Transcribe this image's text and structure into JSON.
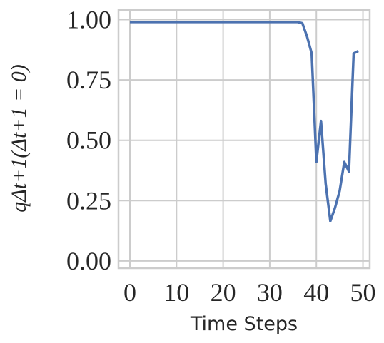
{
  "chart_data": {
    "type": "line",
    "xlabel": "Time Steps",
    "ylabel": "qΔt+1(Δt+1 = 0)",
    "x": [
      0,
      1,
      2,
      3,
      4,
      5,
      6,
      7,
      8,
      9,
      10,
      11,
      12,
      13,
      14,
      15,
      16,
      17,
      18,
      19,
      20,
      21,
      22,
      23,
      24,
      25,
      26,
      27,
      28,
      29,
      30,
      31,
      32,
      33,
      34,
      35,
      36,
      37,
      38,
      39,
      40,
      41,
      42,
      43,
      44,
      45,
      46,
      47,
      48,
      49
    ],
    "series": [
      {
        "color": "#4c72b0",
        "values": [
          0.99,
          0.99,
          0.99,
          0.99,
          0.99,
          0.99,
          0.99,
          0.99,
          0.99,
          0.99,
          0.99,
          0.99,
          0.99,
          0.99,
          0.99,
          0.99,
          0.99,
          0.99,
          0.99,
          0.99,
          0.99,
          0.99,
          0.99,
          0.99,
          0.99,
          0.99,
          0.99,
          0.99,
          0.99,
          0.99,
          0.99,
          0.99,
          0.99,
          0.99,
          0.99,
          0.99,
          0.99,
          0.985,
          0.93,
          0.86,
          0.41,
          0.58,
          0.32,
          0.165,
          0.22,
          0.29,
          0.41,
          0.37,
          0.86,
          0.87
        ]
      }
    ],
    "xlim": [
      -2.45,
      51.45
    ],
    "ylim": [
      -0.03,
      1.04
    ],
    "xticks": [
      0,
      10,
      20,
      30,
      40,
      50
    ],
    "yticks": [
      {
        "value": 0,
        "label": "0.00"
      },
      {
        "value": 0.25,
        "label": "0.25"
      },
      {
        "value": 0.5,
        "label": "0.50"
      },
      {
        "value": 0.75,
        "label": "0.75"
      },
      {
        "value": 1,
        "label": "1.00"
      }
    ],
    "grid": true
  }
}
